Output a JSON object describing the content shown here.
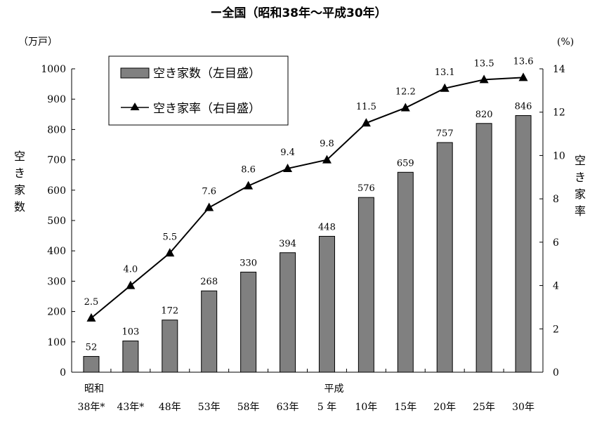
{
  "chart_data": {
    "type": "bar+line",
    "title": "ー全国（昭和38年〜平成30年）",
    "categories": [
      "38年*",
      "43年*",
      "48年",
      "53年",
      "58年",
      "63年",
      "5 年",
      "10年",
      "15年",
      "20年",
      "25年",
      "30年"
    ],
    "era_labels": [
      {
        "index": 0,
        "text": "昭和"
      },
      {
        "index": 6,
        "text": "平成"
      }
    ],
    "series": [
      {
        "name": "空き家数（左目盛）",
        "type": "bar",
        "axis": "left",
        "color": "#808080",
        "values": [
          52,
          103,
          172,
          268,
          330,
          394,
          448,
          576,
          659,
          757,
          820,
          846
        ],
        "labels": [
          "52",
          "103",
          "172",
          "268",
          "330",
          "394",
          "448",
          "576",
          "659",
          "757",
          "820",
          "846"
        ]
      },
      {
        "name": "空き家率（右目盛）",
        "type": "line",
        "axis": "right",
        "color": "#000000",
        "values": [
          2.5,
          4.0,
          5.5,
          7.6,
          8.6,
          9.4,
          9.8,
          11.5,
          12.2,
          13.1,
          13.5,
          13.6
        ],
        "labels": [
          "2.5",
          "4.0",
          "5.5",
          "7.6",
          "8.6",
          "9.4",
          "9.8",
          "11.5",
          "12.2",
          "13.1",
          "13.5",
          "13.6"
        ]
      }
    ],
    "y_left": {
      "label": "空き家数",
      "unit": "（万戸）",
      "range": [
        0,
        1000
      ],
      "ticks": [
        "0",
        "100",
        "200",
        "300",
        "400",
        "500",
        "600",
        "700",
        "800",
        "900",
        "1000"
      ]
    },
    "y_right": {
      "label": "空き家率",
      "unit": "(%)",
      "range": [
        0,
        14
      ],
      "ticks": [
        "0",
        "2",
        "4",
        "6",
        "8",
        "10",
        "12",
        "14"
      ]
    },
    "legend_position": "top-left",
    "grid": false
  }
}
